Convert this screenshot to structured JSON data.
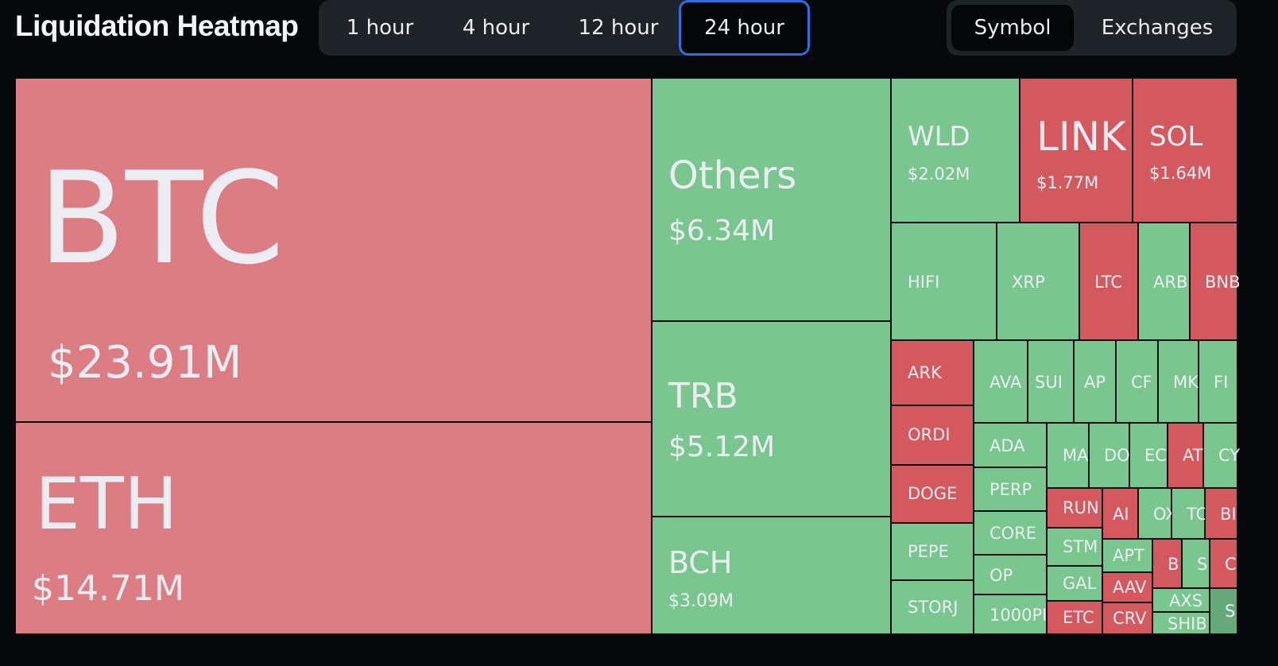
{
  "header": {
    "title": "Liquidation Heatmap",
    "time_tabs": [
      "1 hour",
      "4 hour",
      "12 hour",
      "24 hour"
    ],
    "active_time_tab": "24 hour",
    "view_tabs": [
      "Symbol",
      "Exchanges"
    ],
    "active_view_tab": "Symbol"
  },
  "colors": {
    "background": "#06080b",
    "long_liquidation": "#dc7d83",
    "long_liquidation_strong": "#d4595f",
    "short_liquidation": "#79c68f",
    "focus_ring": "#2f6fe4"
  },
  "tiles": {
    "btc": {
      "symbol": "BTC",
      "value": "$23.91M"
    },
    "eth": {
      "symbol": "ETH",
      "value": "$14.71M"
    },
    "others": {
      "symbol": "Others",
      "value": "$6.34M"
    },
    "trb": {
      "symbol": "TRB",
      "value": "$5.12M"
    },
    "bch": {
      "symbol": "BCH",
      "value": "$3.09M"
    },
    "wld": {
      "symbol": "WLD",
      "value": "$2.02M"
    },
    "link": {
      "symbol": "LINK",
      "value": "$1.77M"
    },
    "sol": {
      "symbol": "SOL",
      "value": "$1.64M"
    },
    "small": [
      "HIFI",
      "XRP",
      "LTC",
      "ARB",
      "BNB",
      "ARK",
      "AVA",
      "SUI",
      "AP",
      "CF",
      "MK",
      "FI",
      "ORDI",
      "ADA",
      "MA",
      "DO",
      "EC",
      "AT",
      "CY",
      "DOGE",
      "PERP",
      "RUN",
      "AI",
      "OX",
      "TC",
      "BI",
      "CORE",
      "STM",
      "APT",
      "B",
      "S",
      "C",
      "PEPE",
      "OP",
      "GAL",
      "AAV",
      "AXS",
      "STORJ",
      "1000PI",
      "ETC",
      "CRV",
      "SHIB",
      "S"
    ]
  }
}
